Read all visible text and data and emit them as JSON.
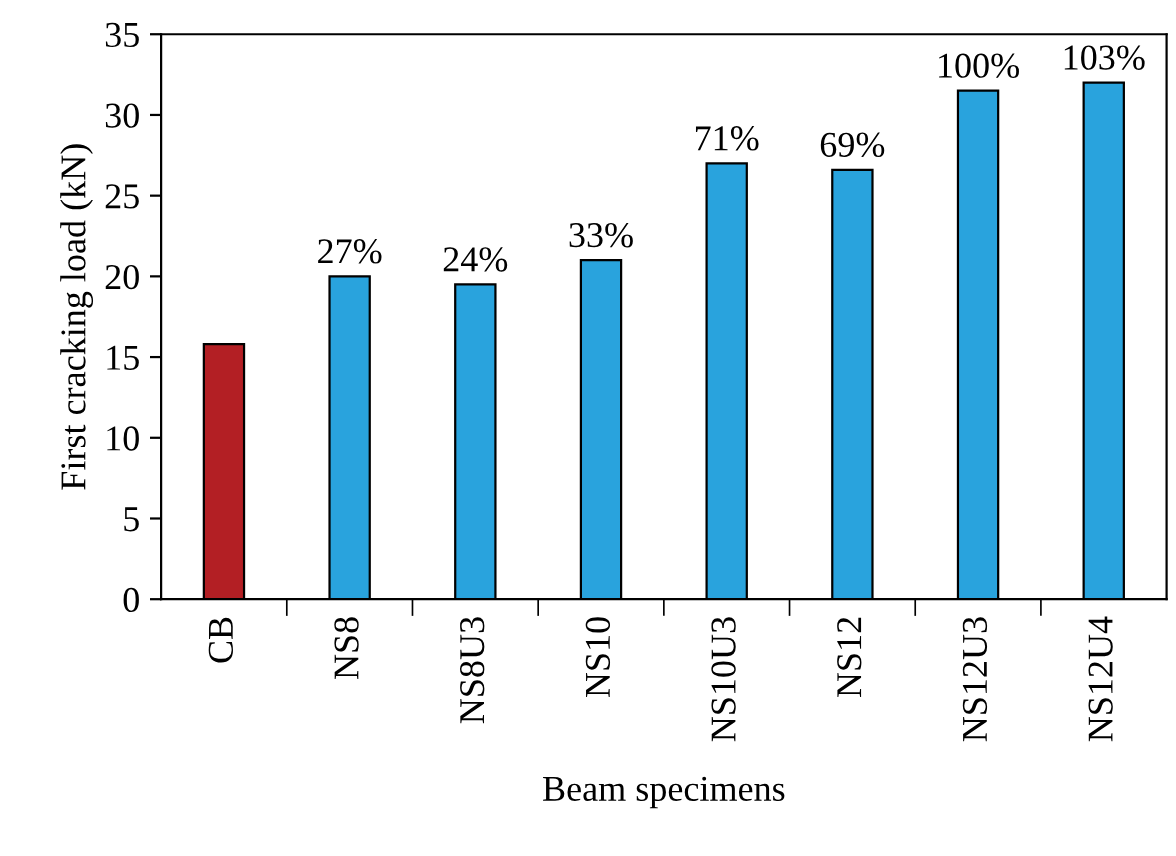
{
  "chart_data": {
    "type": "bar",
    "xlabel": "Beam specimens",
    "ylabel": "First cracking load (kN)",
    "categories": [
      "CB",
      "NS8",
      "NS8U3",
      "NS10",
      "NS10U3",
      "NS12",
      "NS12U3",
      "NS12U4"
    ],
    "values": [
      15.8,
      20,
      19.5,
      21,
      27,
      26.6,
      31.5,
      32
    ],
    "colors": [
      "#b31f24",
      "#29a3dd",
      "#29a3dd",
      "#29a3dd",
      "#29a3dd",
      "#29a3dd",
      "#29a3dd",
      "#29a3dd"
    ],
    "annotations": [
      {
        "text": "27%",
        "x": "NS8",
        "y": 20
      },
      {
        "text": "24%",
        "x": "NS8U3",
        "y": 19.5
      },
      {
        "text": "33%",
        "x": "NS10",
        "y": 21
      },
      {
        "text": "71%",
        "x": "NS10U3",
        "y": 27
      },
      {
        "text": "69%",
        "x": "NS12",
        "y": 26.6
      },
      {
        "text": "100%",
        "x": "NS12U3",
        "y": 31.5
      },
      {
        "text": "103%",
        "x": "NS12U4",
        "y": 32
      }
    ],
    "ylim": [
      0,
      35
    ],
    "yticks": [
      0,
      5,
      10,
      15,
      20,
      25,
      30,
      35
    ],
    "grid": false,
    "legend": false
  }
}
